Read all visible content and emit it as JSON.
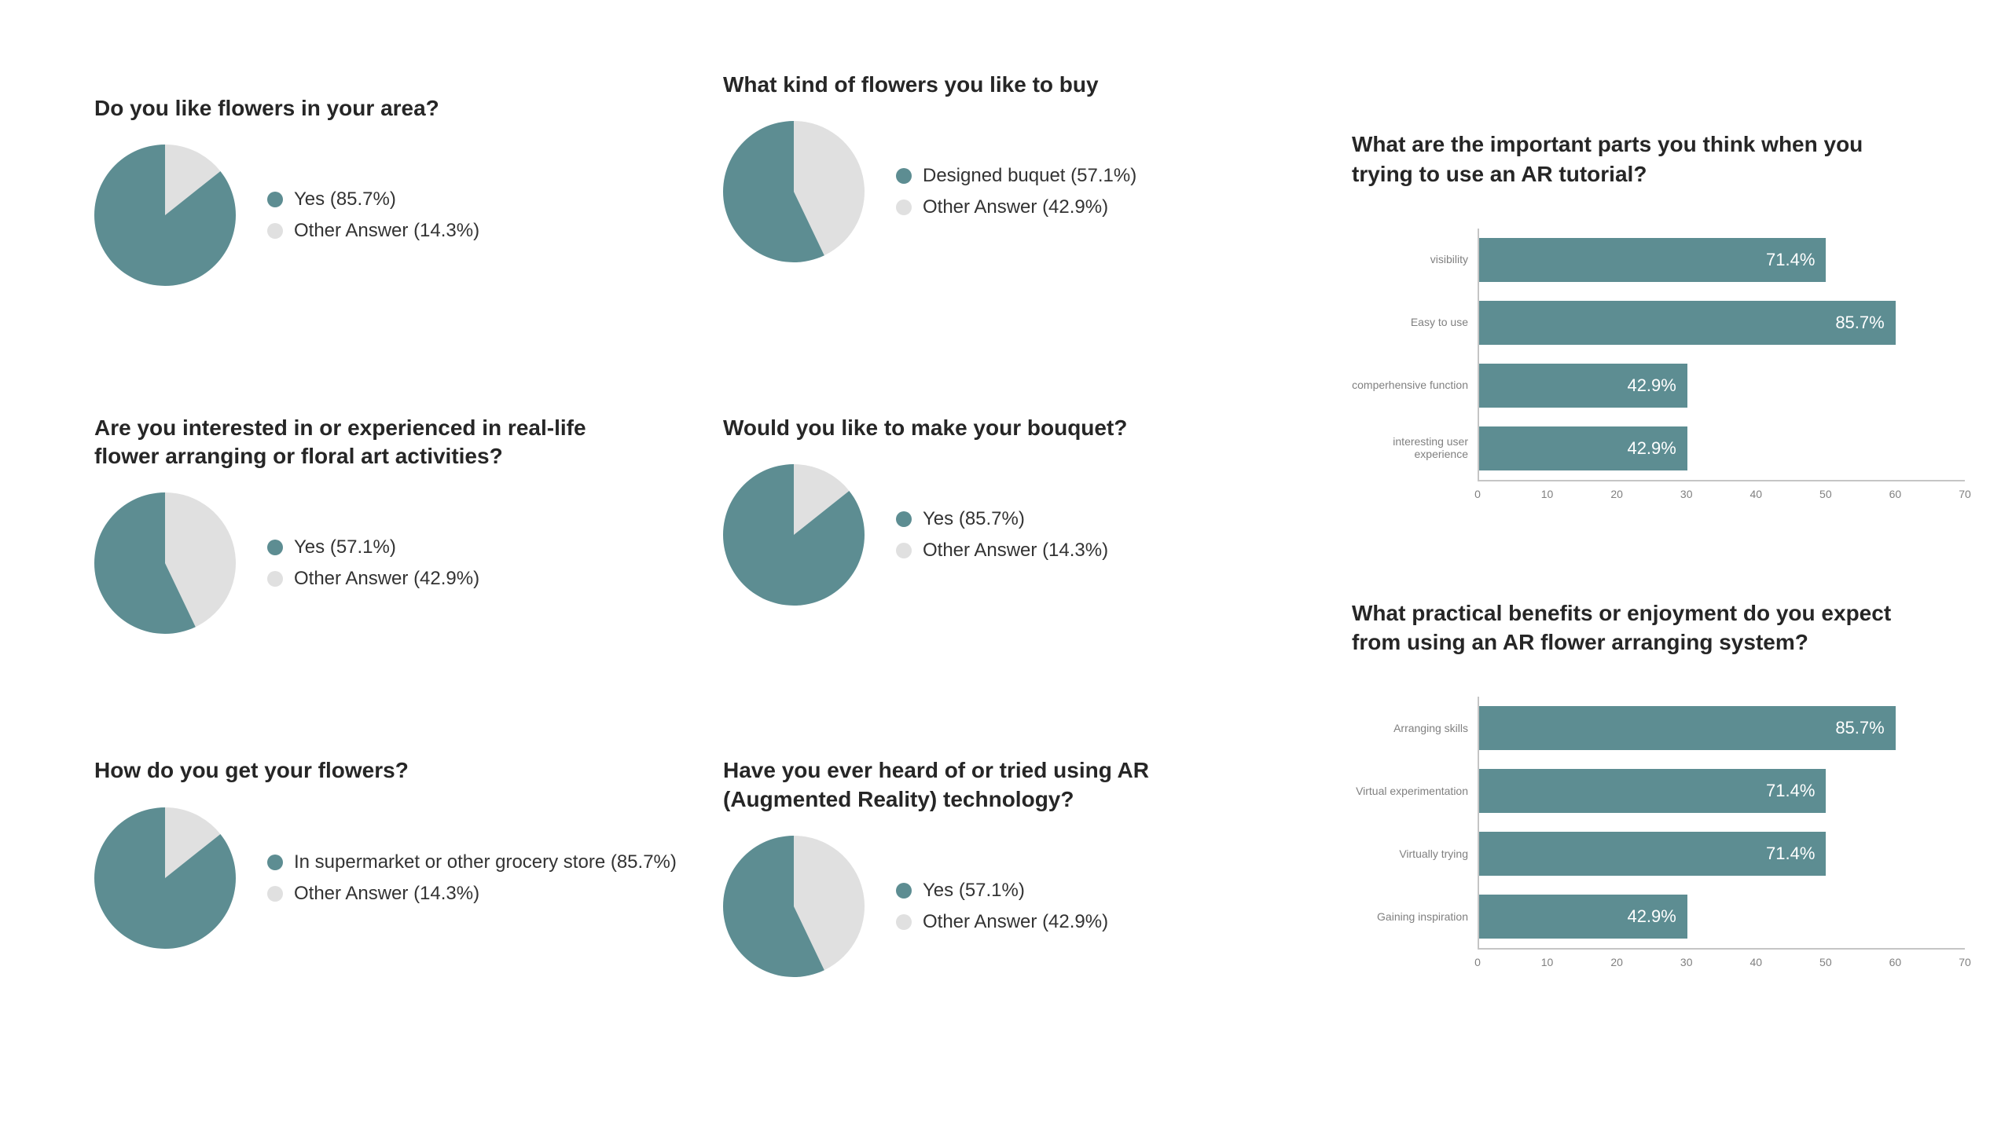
{
  "colors": {
    "primary": "#5d8d92",
    "secondary": "#e0e0e0",
    "text": "#333333",
    "axis": "#c5c5c5",
    "bar_value_text": "#ffffff",
    "ylabel": "#808080"
  },
  "pie_charts": [
    {
      "id": "p1",
      "title": "Do you like flowers in your area?",
      "slices": [
        {
          "label": "Yes (85.7%)",
          "value": 85.7,
          "color": "#5d8d92"
        },
        {
          "label": "Other Answer (14.3%)",
          "value": 14.3,
          "color": "#e0e0e0"
        }
      ]
    },
    {
      "id": "p2",
      "title": "What kind of flowers you like to buy",
      "slices": [
        {
          "label": "Designed buquet (57.1%)",
          "value": 57.1,
          "color": "#5d8d92"
        },
        {
          "label": "Other Answer (42.9%)",
          "value": 42.9,
          "color": "#e0e0e0"
        }
      ]
    },
    {
      "id": "p3",
      "title": "Are you interested in or experienced in real-life flower arranging or floral art activities?",
      "slices": [
        {
          "label": "Yes (57.1%)",
          "value": 57.1,
          "color": "#5d8d92"
        },
        {
          "label": "Other Answer (42.9%)",
          "value": 42.9,
          "color": "#e0e0e0"
        }
      ]
    },
    {
      "id": "p4",
      "title": "Would you like to make your bouquet?",
      "slices": [
        {
          "label": "Yes (85.7%)",
          "value": 85.7,
          "color": "#5d8d92"
        },
        {
          "label": "Other Answer (14.3%)",
          "value": 14.3,
          "color": "#e0e0e0"
        }
      ]
    },
    {
      "id": "p5",
      "title": "How do you get your flowers?",
      "slices": [
        {
          "label": "In supermarket or other grocery store (85.7%)",
          "value": 85.7,
          "color": "#5d8d92"
        },
        {
          "label": "Other Answer (14.3%)",
          "value": 14.3,
          "color": "#e0e0e0"
        }
      ]
    },
    {
      "id": "p6",
      "title": "Have you ever heard of or tried using AR (Augmented Reality) technology?",
      "slices": [
        {
          "label": "Yes (57.1%)",
          "value": 57.1,
          "color": "#5d8d92"
        },
        {
          "label": "Other Answer (42.9%)",
          "value": 42.9,
          "color": "#e0e0e0"
        }
      ]
    }
  ],
  "bar_charts": [
    {
      "id": "b1",
      "title": "What are the important parts you think when you trying to use an AR tutorial?",
      "xmax": 70,
      "xticks": [
        0,
        10,
        20,
        30,
        40,
        50,
        60,
        70
      ],
      "bar_color": "#5d8d92",
      "bars": [
        {
          "label": "visibility",
          "value": 71.4,
          "value_label": "71.4%",
          "bar_len": 50
        },
        {
          "label": "Easy to use",
          "value": 85.7,
          "value_label": "85.7%",
          "bar_len": 60
        },
        {
          "label": "comperhensive function",
          "value": 42.9,
          "value_label": "42.9%",
          "bar_len": 30
        },
        {
          "label": "interesting user experience",
          "value": 42.9,
          "value_label": "42.9%",
          "bar_len": 30
        }
      ]
    },
    {
      "id": "b2",
      "title": "What practical benefits or enjoyment do you expect from using an AR flower arranging system?",
      "xmax": 70,
      "xticks": [
        0,
        10,
        20,
        30,
        40,
        50,
        60,
        70
      ],
      "bar_color": "#5d8d92",
      "bars": [
        {
          "label": "Arranging skills",
          "value": 85.7,
          "value_label": "85.7%",
          "bar_len": 60
        },
        {
          "label": "Virtual experimentation",
          "value": 71.4,
          "value_label": "71.4%",
          "bar_len": 50
        },
        {
          "label": "Virtually trying",
          "value": 71.4,
          "value_label": "71.4%",
          "bar_len": 50
        },
        {
          "label": "Gaining inspiration",
          "value": 42.9,
          "value_label": "42.9%",
          "bar_len": 30
        }
      ]
    }
  ]
}
